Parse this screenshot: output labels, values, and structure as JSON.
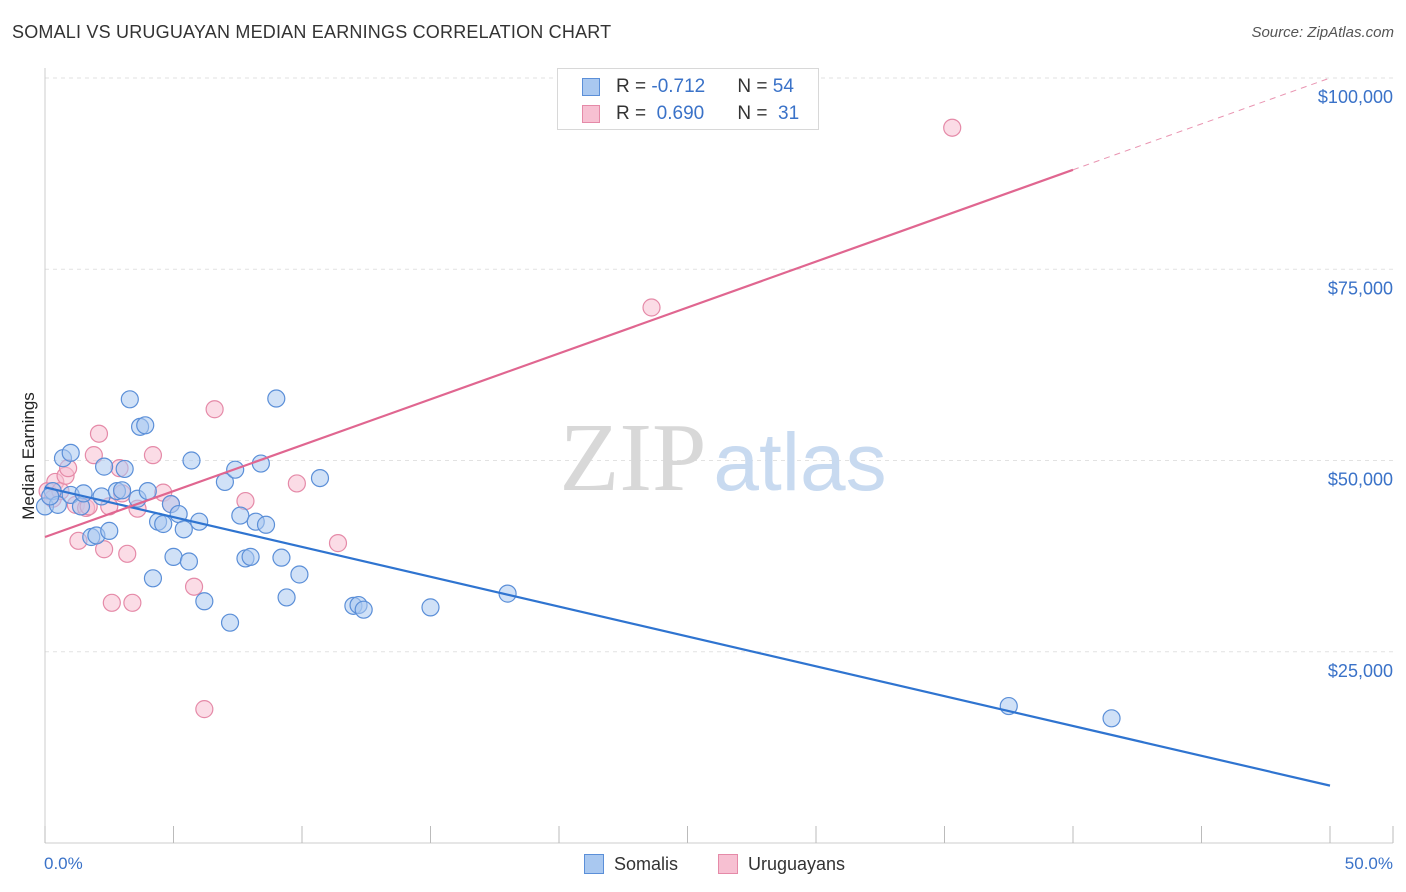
{
  "header": {
    "title": "SOMALI VS URUGUAYAN MEDIAN EARNINGS CORRELATION CHART",
    "source": "Source: ZipAtlas.com"
  },
  "watermark": {
    "zip": "ZIP",
    "atlas": "atlas"
  },
  "legend": {
    "rows": [
      {
        "r_label": "R = ",
        "r_value": "-0.712",
        "n_label": "N = ",
        "n_value": "54"
      },
      {
        "r_label": "R = ",
        "r_value": " 0.690",
        "n_label": "N = ",
        "n_value": " 31"
      }
    ]
  },
  "bottom_legend": {
    "somalis": "Somalis",
    "uruguayans": "Uruguayans"
  },
  "colors": {
    "somali_fill": "#a9c8f0",
    "somali_stroke": "#5b8fd8",
    "somali_line": "#2f74d0",
    "uruguayan_fill": "#f7c0d2",
    "uruguayan_stroke": "#e58aa8",
    "uruguayan_line": "#e06690",
    "axis_text": "#3a72c8",
    "grid": "#e2e2e2"
  },
  "chart_data": {
    "type": "scatter",
    "title": "SOMALI VS URUGUAYAN MEDIAN EARNINGS CORRELATION CHART",
    "xlabel": "",
    "ylabel": "Median Earnings",
    "xlim": [
      0,
      50
    ],
    "ylim": [
      0,
      100000
    ],
    "x_tick_labels": [
      "0.0%",
      "50.0%"
    ],
    "y_tick_labels": [
      "$25,000",
      "$50,000",
      "$75,000",
      "$100,000"
    ],
    "y_ticks": [
      25000,
      50000,
      75000,
      100000
    ],
    "series": [
      {
        "name": "Somalis",
        "r": -0.712,
        "n": 54,
        "trend": {
          "x": [
            0,
            50
          ],
          "y": [
            46500,
            7500
          ]
        },
        "points": [
          [
            0.0,
            44000
          ],
          [
            0.3,
            46000
          ],
          [
            0.5,
            44200
          ],
          [
            0.7,
            50300
          ],
          [
            1.0,
            51000
          ],
          [
            1.0,
            45500
          ],
          [
            1.4,
            44000
          ],
          [
            1.5,
            45700
          ],
          [
            1.8,
            40000
          ],
          [
            2.0,
            40200
          ],
          [
            2.2,
            45300
          ],
          [
            2.3,
            49200
          ],
          [
            2.5,
            40800
          ],
          [
            2.8,
            46000
          ],
          [
            3.0,
            46100
          ],
          [
            3.1,
            48900
          ],
          [
            3.3,
            58000
          ],
          [
            3.6,
            45000
          ],
          [
            3.7,
            54400
          ],
          [
            3.9,
            54600
          ],
          [
            4.0,
            46000
          ],
          [
            4.2,
            34600
          ],
          [
            4.4,
            42000
          ],
          [
            4.6,
            41700
          ],
          [
            4.9,
            44300
          ],
          [
            5.0,
            37400
          ],
          [
            5.2,
            43000
          ],
          [
            5.4,
            41000
          ],
          [
            5.6,
            36800
          ],
          [
            5.7,
            50000
          ],
          [
            6.0,
            42000
          ],
          [
            6.2,
            31600
          ],
          [
            7.0,
            47200
          ],
          [
            7.2,
            28800
          ],
          [
            7.4,
            48800
          ],
          [
            7.6,
            42800
          ],
          [
            7.8,
            37200
          ],
          [
            8.0,
            37400
          ],
          [
            8.2,
            42000
          ],
          [
            8.4,
            49600
          ],
          [
            8.6,
            41600
          ],
          [
            9.0,
            58100
          ],
          [
            9.2,
            37300
          ],
          [
            9.4,
            32100
          ],
          [
            9.9,
            35100
          ],
          [
            10.7,
            47700
          ],
          [
            12.0,
            31000
          ],
          [
            12.2,
            31100
          ],
          [
            12.4,
            30500
          ],
          [
            15.0,
            30800
          ],
          [
            18.0,
            32600
          ],
          [
            37.5,
            17900
          ],
          [
            41.5,
            16300
          ],
          [
            0.2,
            45300
          ]
        ]
      },
      {
        "name": "Uruguayans",
        "r": 0.69,
        "n": 31,
        "trend": {
          "x": [
            0,
            40
          ],
          "y": [
            40000,
            88000
          ]
        },
        "trend_dashed": {
          "x": [
            40,
            50
          ],
          "y": [
            88000,
            100000
          ]
        },
        "points": [
          [
            0.1,
            46000
          ],
          [
            0.3,
            45000
          ],
          [
            0.4,
            47200
          ],
          [
            0.6,
            46000
          ],
          [
            0.8,
            48000
          ],
          [
            0.9,
            49000
          ],
          [
            1.2,
            44200
          ],
          [
            1.3,
            39500
          ],
          [
            1.6,
            43800
          ],
          [
            1.9,
            50700
          ],
          [
            2.1,
            53500
          ],
          [
            2.3,
            38400
          ],
          [
            2.5,
            44000
          ],
          [
            2.6,
            31400
          ],
          [
            2.9,
            49000
          ],
          [
            3.0,
            45700
          ],
          [
            3.2,
            37800
          ],
          [
            3.4,
            31400
          ],
          [
            3.6,
            43700
          ],
          [
            4.2,
            50700
          ],
          [
            4.6,
            45800
          ],
          [
            4.9,
            44300
          ],
          [
            5.8,
            33500
          ],
          [
            6.2,
            17500
          ],
          [
            6.6,
            56700
          ],
          [
            7.8,
            44700
          ],
          [
            9.8,
            47000
          ],
          [
            11.4,
            39200
          ],
          [
            23.6,
            70000
          ],
          [
            35.3,
            93500
          ],
          [
            1.7,
            44000
          ]
        ]
      }
    ]
  }
}
